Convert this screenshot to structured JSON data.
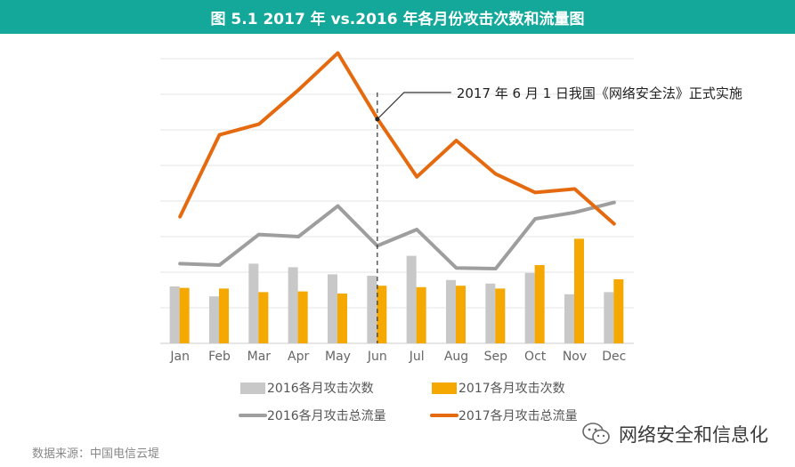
{
  "header": {
    "title": "图 5.1 2017 年 vs.2016 年各月份攻击次数和流量图"
  },
  "footer": {
    "source": "数据来源：中国电信云堤",
    "watermark": "网络安全和信息化"
  },
  "colors": {
    "bar2016": "#c8c8c8",
    "bar2017": "#f5a800",
    "line2016": "#9e9e9e",
    "line2017": "#e56a0f",
    "title_bg": "#14a89a"
  },
  "chart_data": {
    "type": "bar+line",
    "categories": [
      "Jan",
      "Feb",
      "Mar",
      "Apr",
      "May",
      "Jun",
      "Jul",
      "Aug",
      "Sep",
      "Oct",
      "Nov",
      "Dec"
    ],
    "ylim": [
      0,
      8
    ],
    "grid": true,
    "series": [
      {
        "name": "2016各月攻击次数",
        "kind": "bar",
        "values": [
          1.6,
          1.32,
          2.24,
          2.14,
          1.94,
          1.9,
          2.46,
          1.78,
          1.68,
          1.98,
          1.38,
          1.44
        ]
      },
      {
        "name": "2017各月攻击次数",
        "kind": "bar",
        "values": [
          1.56,
          1.54,
          1.44,
          1.46,
          1.4,
          1.62,
          1.58,
          1.62,
          1.54,
          2.2,
          2.94,
          1.8
        ]
      },
      {
        "name": "2016各月攻击总流量",
        "kind": "line",
        "values": [
          2.24,
          2.2,
          3.06,
          3.0,
          3.86,
          2.74,
          3.2,
          2.12,
          2.1,
          3.5,
          3.68,
          3.96
        ]
      },
      {
        "name": "2017各月攻击总流量",
        "kind": "line",
        "values": [
          3.56,
          5.86,
          6.16,
          7.12,
          8.16,
          6.32,
          4.68,
          5.7,
          4.76,
          4.24,
          4.34,
          3.36
        ]
      }
    ],
    "annotation": {
      "text": "2017 年 6 月 1 日我国《网络安全法》正式实施",
      "category": "Jun"
    }
  }
}
